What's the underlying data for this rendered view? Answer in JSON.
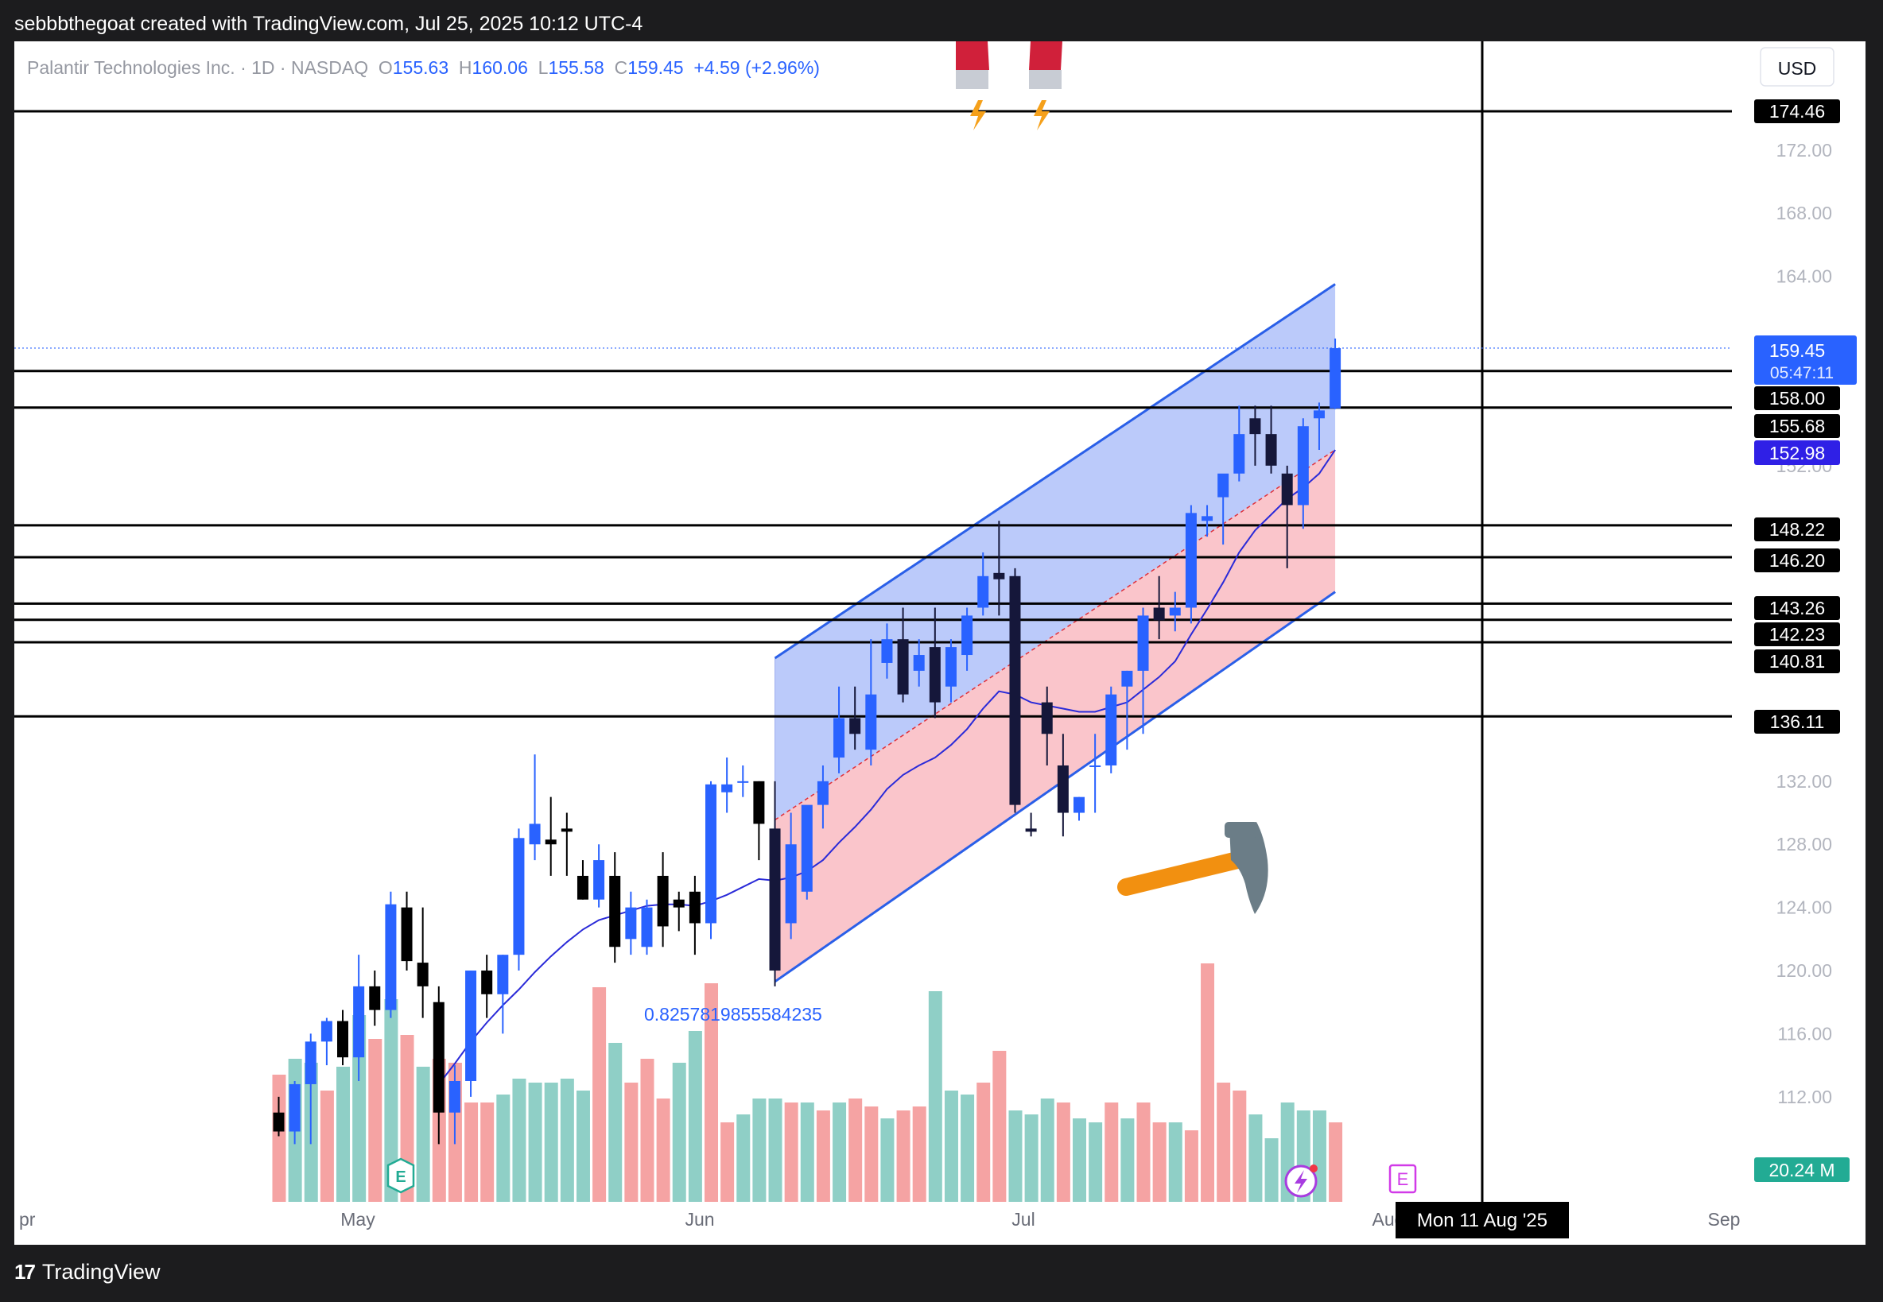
{
  "caption": "sebbbthegoat created with TradingView.com, Jul 25, 2025 10:12 UTC-4",
  "brand": {
    "logo": "17",
    "name": "TradingView"
  },
  "legend": {
    "symbol": "Palantir Technologies Inc. · 1D · NASDAQ",
    "o_label": "O",
    "o_value": "155.63",
    "h_label": "H",
    "h_value": "160.06",
    "l_label": "L",
    "l_value": "155.58",
    "c_label": "C",
    "c_value": "159.45",
    "change": "+4.59 (+2.96%)"
  },
  "currency": "USD",
  "price_tag": {
    "price": "159.45",
    "countdown": "05:47:11"
  },
  "channel_tag": "152.98",
  "volume_tag": "20.24 M",
  "crosshair_date": "Mon 11 Aug '25",
  "fib_annotation": "0.8257819855584235",
  "icons": [
    "magnet-icon",
    "hammer-icon",
    "earnings-icon",
    "lightning-icon"
  ],
  "events": {
    "earnings_letter": "E"
  },
  "colors": {
    "up": "#2962ff",
    "down": "#000000",
    "vol_up": "#8fcfc6",
    "vol_down": "#f5a3a3",
    "channel_upper": "rgba(120,150,245,0.5)",
    "channel_lower": "rgba(245,150,160,0.55)",
    "ma": "#2a2ad8",
    "level": "#000000"
  },
  "chart_data": {
    "type": "candlestick",
    "symbol": "PLTR",
    "timeframe": "1D",
    "y_axis": {
      "min": 108,
      "max": 179,
      "ticks": [
        112,
        116,
        120,
        124,
        128,
        132,
        152,
        164,
        168,
        172
      ],
      "tick_labels": [
        "112.00",
        "116.00",
        "120.00",
        "124.00",
        "128.00",
        "132.00",
        "152.00",
        "164.00",
        "168.00",
        "172.00"
      ]
    },
    "x_axis": {
      "month_labels": [
        {
          "label": "Apr",
          "text": "pr"
        },
        {
          "label": "May",
          "text": "May"
        },
        {
          "label": "Jun",
          "text": "Jun"
        },
        {
          "label": "Jul",
          "text": "Jul"
        },
        {
          "label": "Aug",
          "text": "Aug"
        },
        {
          "label": "Sep",
          "text": "Sep"
        }
      ]
    },
    "horizontal_levels": [
      174.46,
      158.0,
      155.68,
      148.22,
      146.2,
      143.26,
      142.23,
      140.81,
      136.11
    ],
    "level_labels": [
      "174.46",
      "158.00",
      "155.68",
      "148.22",
      "146.20",
      "143.26",
      "142.23",
      "140.81",
      "136.11"
    ],
    "channel": {
      "start_date": "2025-06-10",
      "end_date": "2025-07-25",
      "lower_start": 119.3,
      "lower_end": 144.0,
      "upper_start": 139.8,
      "upper_end": 163.5,
      "mid_end": 153.0
    },
    "candles": [
      {
        "o": 111,
        "h": 112,
        "l": 109.5,
        "c": 109.8
      },
      {
        "o": 109.8,
        "h": 113,
        "l": 109,
        "c": 112.8
      },
      {
        "o": 112.8,
        "h": 116,
        "l": 109,
        "c": 115.5
      },
      {
        "o": 115.5,
        "h": 117,
        "l": 114,
        "c": 116.8
      },
      {
        "o": 116.8,
        "h": 117.5,
        "l": 114,
        "c": 114.5
      },
      {
        "o": 114.5,
        "h": 121,
        "l": 113,
        "c": 119
      },
      {
        "o": 119,
        "h": 120,
        "l": 116.5,
        "c": 117.5
      },
      {
        "o": 117.5,
        "h": 125,
        "l": 117,
        "c": 124.2
      },
      {
        "o": 124,
        "h": 125,
        "l": 120,
        "c": 120.6
      },
      {
        "o": 120.5,
        "h": 124,
        "l": 117,
        "c": 119
      },
      {
        "o": 118,
        "h": 119,
        "l": 109,
        "c": 111
      },
      {
        "o": 111,
        "h": 114,
        "l": 109,
        "c": 113
      },
      {
        "o": 113,
        "h": 120,
        "l": 112,
        "c": 120
      },
      {
        "o": 120,
        "h": 121,
        "l": 117,
        "c": 118.5
      },
      {
        "o": 118.5,
        "h": 121,
        "l": 116,
        "c": 121
      },
      {
        "o": 121,
        "h": 129,
        "l": 120,
        "c": 128.4
      },
      {
        "o": 128,
        "h": 133.7,
        "l": 127,
        "c": 129.3
      },
      {
        "o": 128.3,
        "h": 131,
        "l": 126,
        "c": 128
      },
      {
        "o": 129,
        "h": 130,
        "l": 126,
        "c": 128.8
      },
      {
        "o": 126,
        "h": 127,
        "l": 124.5,
        "c": 124.5
      },
      {
        "o": 124.5,
        "h": 128,
        "l": 124,
        "c": 127
      },
      {
        "o": 126,
        "h": 127.5,
        "l": 120.5,
        "c": 121.5
      },
      {
        "o": 122,
        "h": 125,
        "l": 121,
        "c": 124
      },
      {
        "o": 121.5,
        "h": 124.5,
        "l": 121,
        "c": 124
      },
      {
        "o": 126,
        "h": 127.5,
        "l": 121.5,
        "c": 122.8
      },
      {
        "o": 124.5,
        "h": 125,
        "l": 122.5,
        "c": 124
      },
      {
        "o": 125,
        "h": 126,
        "l": 121,
        "c": 123
      },
      {
        "o": 123,
        "h": 132,
        "l": 122,
        "c": 131.8
      },
      {
        "o": 131.3,
        "h": 133.5,
        "l": 130,
        "c": 131.8
      },
      {
        "o": 132,
        "h": 133,
        "l": 131,
        "c": 132
      },
      {
        "o": 132,
        "h": 132,
        "l": 127,
        "c": 129.3
      },
      {
        "o": 129,
        "h": 132,
        "l": 119,
        "c": 120
      },
      {
        "o": 123,
        "h": 130,
        "l": 122,
        "c": 128
      },
      {
        "o": 125,
        "h": 130,
        "l": 124.5,
        "c": 130.5
      },
      {
        "o": 130.5,
        "h": 133,
        "l": 129,
        "c": 132
      },
      {
        "o": 133.5,
        "h": 138,
        "l": 132.5,
        "c": 136
      },
      {
        "o": 136,
        "h": 138,
        "l": 134,
        "c": 135
      },
      {
        "o": 134,
        "h": 141,
        "l": 133,
        "c": 137.5
      },
      {
        "o": 139.5,
        "h": 142,
        "l": 138.5,
        "c": 141
      },
      {
        "o": 141,
        "h": 143,
        "l": 137,
        "c": 137.5
      },
      {
        "o": 139,
        "h": 141,
        "l": 138,
        "c": 140
      },
      {
        "o": 140.5,
        "h": 143,
        "l": 136,
        "c": 137
      },
      {
        "o": 138,
        "h": 141,
        "l": 137,
        "c": 140.5
      },
      {
        "o": 140,
        "h": 143,
        "l": 139,
        "c": 142.5
      },
      {
        "o": 143,
        "h": 146.5,
        "l": 142.5,
        "c": 145
      },
      {
        "o": 145.2,
        "h": 148.5,
        "l": 142.5,
        "c": 144.8
      },
      {
        "o": 145,
        "h": 145.5,
        "l": 130,
        "c": 130.5
      },
      {
        "o": 129,
        "h": 130,
        "l": 128.5,
        "c": 128.8
      },
      {
        "o": 137,
        "h": 138,
        "l": 133,
        "c": 135
      },
      {
        "o": 133,
        "h": 135,
        "l": 128.5,
        "c": 130
      },
      {
        "o": 130,
        "h": 131,
        "l": 129.5,
        "c": 131
      },
      {
        "o": 133,
        "h": 135,
        "l": 130,
        "c": 133
      },
      {
        "o": 133,
        "h": 138,
        "l": 132.5,
        "c": 137.5
      },
      {
        "o": 138,
        "h": 139,
        "l": 134,
        "c": 139
      },
      {
        "o": 139,
        "h": 143,
        "l": 135,
        "c": 142.5
      },
      {
        "o": 143,
        "h": 145,
        "l": 141,
        "c": 142.2
      },
      {
        "o": 142.5,
        "h": 144,
        "l": 141.5,
        "c": 143
      },
      {
        "o": 143,
        "h": 149.5,
        "l": 142,
        "c": 149
      },
      {
        "o": 148.5,
        "h": 149.5,
        "l": 147.5,
        "c": 148.8
      },
      {
        "o": 150,
        "h": 151,
        "l": 147,
        "c": 151.5
      },
      {
        "o": 151.5,
        "h": 155.8,
        "l": 151,
        "c": 154
      },
      {
        "o": 155,
        "h": 155.8,
        "l": 152,
        "c": 154
      },
      {
        "o": 154,
        "h": 155.8,
        "l": 151.5,
        "c": 152
      },
      {
        "o": 151.5,
        "h": 152,
        "l": 145.5,
        "c": 149.5
      },
      {
        "o": 149.5,
        "h": 155,
        "l": 148,
        "c": 154.5
      },
      {
        "o": 155,
        "h": 156,
        "l": 153,
        "c": 155.5
      },
      {
        "o": 155.63,
        "h": 160.06,
        "l": 155.58,
        "c": 159.45
      }
    ],
    "moving_average": [
      null,
      null,
      null,
      null,
      null,
      null,
      null,
      null,
      null,
      null,
      112.8,
      114.1,
      115.5,
      116.7,
      117.8,
      118.8,
      119.9,
      120.9,
      121.8,
      122.6,
      123.2,
      123.5,
      123.8,
      124.1,
      124.2,
      124.2,
      124.1,
      124.4,
      124.8,
      125.3,
      125.8,
      125.7,
      125.9,
      126.3,
      127.0,
      128.1,
      129.1,
      130.2,
      131.5,
      132.4,
      133.0,
      133.5,
      134.3,
      135.3,
      136.6,
      137.7,
      137.5,
      137.0,
      136.8,
      136.6,
      136.4,
      136.4,
      136.7,
      137.0,
      137.8,
      138.6,
      139.6,
      141.3,
      142.9,
      144.6,
      146.5,
      147.9,
      148.9,
      149.9,
      150.6,
      151.5,
      153.0
    ],
    "volume": [
      {
        "v": 32,
        "up": false
      },
      {
        "v": 36,
        "up": true
      },
      {
        "v": 35,
        "up": true
      },
      {
        "v": 28,
        "up": false
      },
      {
        "v": 34,
        "up": true
      },
      {
        "v": 47,
        "up": true
      },
      {
        "v": 41,
        "up": false
      },
      {
        "v": 51,
        "up": true
      },
      {
        "v": 42,
        "up": false
      },
      {
        "v": 34,
        "up": true
      },
      {
        "v": 36,
        "up": false
      },
      {
        "v": 35,
        "up": false
      },
      {
        "v": 25,
        "up": false
      },
      {
        "v": 25,
        "up": false
      },
      {
        "v": 27,
        "up": true
      },
      {
        "v": 31,
        "up": true
      },
      {
        "v": 30,
        "up": true
      },
      {
        "v": 30,
        "up": true
      },
      {
        "v": 31,
        "up": true
      },
      {
        "v": 28,
        "up": true
      },
      {
        "v": 54,
        "up": false
      },
      {
        "v": 40,
        "up": true
      },
      {
        "v": 30,
        "up": false
      },
      {
        "v": 36,
        "up": false
      },
      {
        "v": 26,
        "up": false
      },
      {
        "v": 35,
        "up": true
      },
      {
        "v": 43,
        "up": true
      },
      {
        "v": 55,
        "up": false
      },
      {
        "v": 20,
        "up": false
      },
      {
        "v": 22,
        "up": true
      },
      {
        "v": 26,
        "up": true
      },
      {
        "v": 26,
        "up": true
      },
      {
        "v": 25,
        "up": false
      },
      {
        "v": 25,
        "up": true
      },
      {
        "v": 23,
        "up": false
      },
      {
        "v": 25,
        "up": true
      },
      {
        "v": 26,
        "up": false
      },
      {
        "v": 24,
        "up": false
      },
      {
        "v": 21,
        "up": true
      },
      {
        "v": 23,
        "up": false
      },
      {
        "v": 24,
        "up": false
      },
      {
        "v": 53,
        "up": true
      },
      {
        "v": 28,
        "up": true
      },
      {
        "v": 27,
        "up": true
      },
      {
        "v": 30,
        "up": false
      },
      {
        "v": 38,
        "up": false
      },
      {
        "v": 23,
        "up": true
      },
      {
        "v": 22,
        "up": true
      },
      {
        "v": 26,
        "up": true
      },
      {
        "v": 25,
        "up": false
      },
      {
        "v": 21,
        "up": true
      },
      {
        "v": 20,
        "up": true
      },
      {
        "v": 25,
        "up": false
      },
      {
        "v": 21,
        "up": true
      },
      {
        "v": 25,
        "up": false
      },
      {
        "v": 20,
        "up": false
      },
      {
        "v": 20,
        "up": true
      },
      {
        "v": 18,
        "up": false
      },
      {
        "v": 60,
        "up": false
      },
      {
        "v": 30,
        "up": false
      },
      {
        "v": 28,
        "up": false
      },
      {
        "v": 22,
        "up": true
      },
      {
        "v": 16,
        "up": true
      },
      {
        "v": 25,
        "up": true
      },
      {
        "v": 23,
        "up": true
      },
      {
        "v": 23,
        "up": true
      },
      {
        "v": 20,
        "up": false
      }
    ]
  }
}
